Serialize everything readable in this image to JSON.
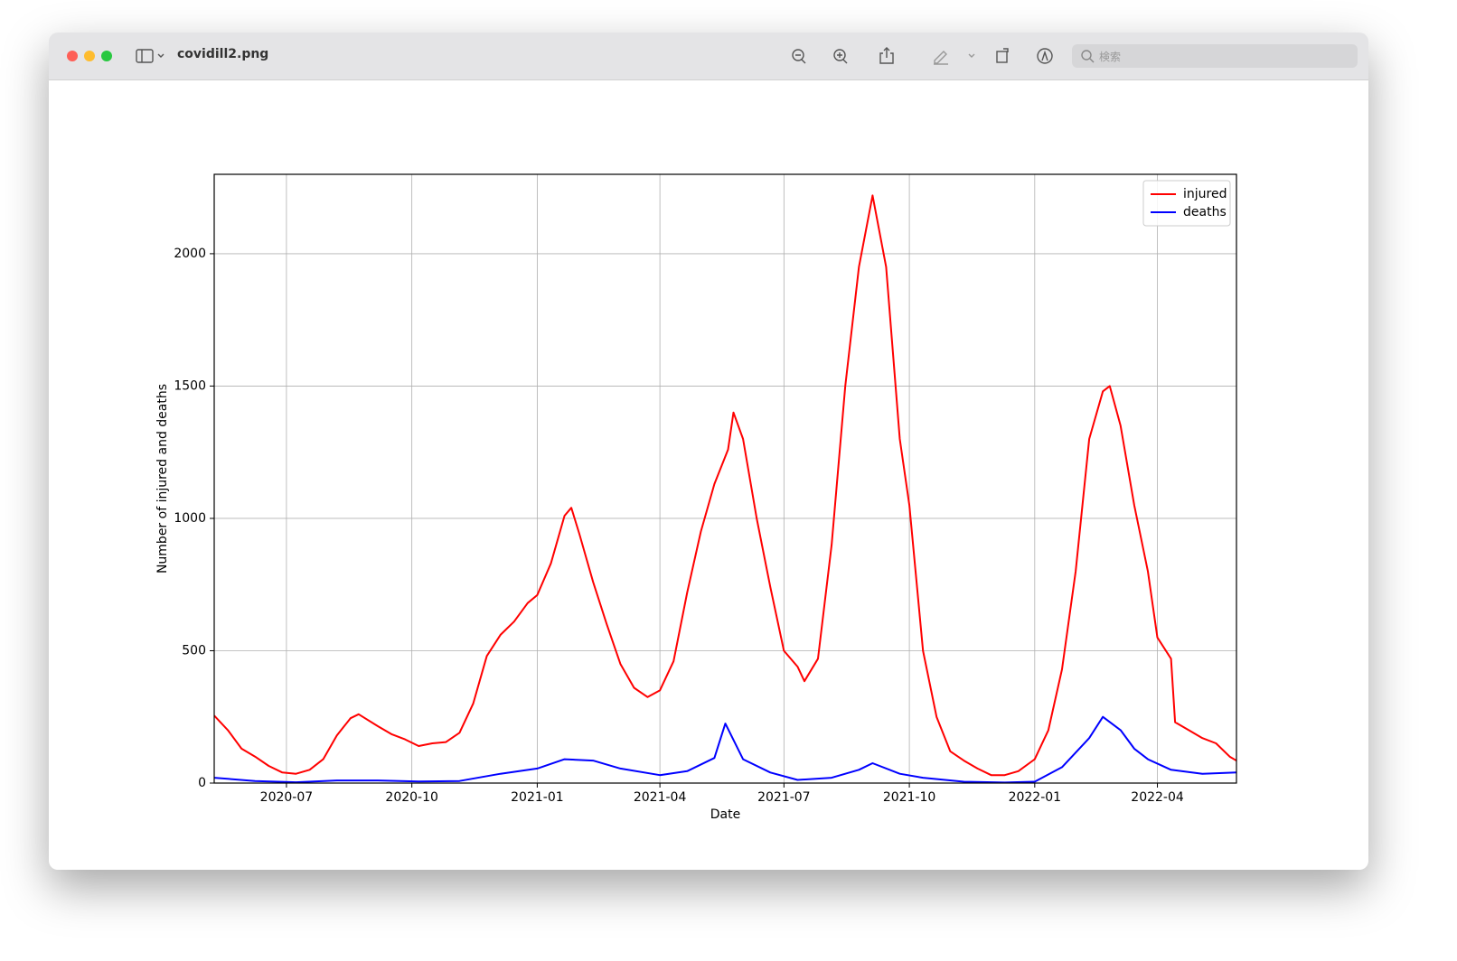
{
  "window": {
    "title": "covidill2.png",
    "search_placeholder": "検索"
  },
  "chart_data": {
    "type": "line",
    "xlabel": "Date",
    "ylabel": "Number of injured and deaths",
    "xlim": [
      "2020-05-09",
      "2022-05-29"
    ],
    "xticks": [
      "2020-07",
      "2020-10",
      "2021-01",
      "2021-04",
      "2021-07",
      "2021-10",
      "2022-01",
      "2022-04"
    ],
    "ylim": [
      0,
      2300
    ],
    "yticks": [
      0,
      500,
      1000,
      1500,
      2000
    ],
    "grid": true,
    "legend": "upper right",
    "series": [
      {
        "name": "injured",
        "color": "#ff0000",
        "x": [
          "2020-05-09",
          "2020-05-19",
          "2020-05-29",
          "2020-06-08",
          "2020-06-18",
          "2020-06-28",
          "2020-07-08",
          "2020-07-18",
          "2020-07-28",
          "2020-08-07",
          "2020-08-17",
          "2020-08-23",
          "2020-09-06",
          "2020-09-16",
          "2020-09-26",
          "2020-10-06",
          "2020-10-16",
          "2020-10-26",
          "2020-11-05",
          "2020-11-15",
          "2020-11-25",
          "2020-12-05",
          "2020-12-15",
          "2020-12-25",
          "2021-01-01",
          "2021-01-11",
          "2021-01-21",
          "2021-01-26",
          "2021-02-01",
          "2021-02-11",
          "2021-02-21",
          "2021-03-03",
          "2021-03-13",
          "2021-03-23",
          "2021-04-01",
          "2021-04-11",
          "2021-04-21",
          "2021-05-01",
          "2021-05-11",
          "2021-05-21",
          "2021-05-25",
          "2021-06-01",
          "2021-06-11",
          "2021-06-21",
          "2021-07-01",
          "2021-07-11",
          "2021-07-16",
          "2021-07-26",
          "2021-08-05",
          "2021-08-15",
          "2021-08-25",
          "2021-09-04",
          "2021-09-14",
          "2021-09-24",
          "2021-10-01",
          "2021-10-11",
          "2021-10-21",
          "2021-10-31",
          "2021-11-10",
          "2021-11-20",
          "2021-11-30",
          "2021-12-10",
          "2021-12-20",
          "2022-01-01",
          "2022-01-11",
          "2022-01-21",
          "2022-01-31",
          "2022-02-10",
          "2022-02-20",
          "2022-02-25",
          "2022-03-05",
          "2022-03-15",
          "2022-03-25",
          "2022-04-01",
          "2022-04-11",
          "2022-04-14",
          "2022-04-24",
          "2022-05-04",
          "2022-05-14",
          "2022-05-24",
          "2022-05-29"
        ],
        "values": [
          255,
          200,
          130,
          100,
          65,
          40,
          35,
          50,
          90,
          180,
          245,
          260,
          215,
          185,
          165,
          140,
          150,
          155,
          190,
          300,
          480,
          560,
          610,
          680,
          710,
          830,
          1010,
          1040,
          940,
          760,
          600,
          450,
          360,
          325,
          350,
          460,
          720,
          950,
          1130,
          1260,
          1400,
          1300,
          1000,
          740,
          500,
          440,
          385,
          470,
          900,
          1500,
          1950,
          2220,
          1950,
          1300,
          1050,
          500,
          250,
          120,
          85,
          55,
          30,
          30,
          45,
          90,
          200,
          430,
          800,
          1300,
          1480,
          1500,
          1350,
          1050,
          800,
          550,
          470,
          230,
          200,
          170,
          150,
          100,
          85
        ]
      },
      {
        "name": "deaths",
        "color": "#0000ff",
        "x": [
          "2020-05-09",
          "2020-06-08",
          "2020-07-08",
          "2020-08-07",
          "2020-09-06",
          "2020-10-06",
          "2020-11-05",
          "2020-12-05",
          "2021-01-01",
          "2021-01-21",
          "2021-02-11",
          "2021-03-03",
          "2021-04-01",
          "2021-04-21",
          "2021-05-11",
          "2021-05-19",
          "2021-06-01",
          "2021-06-21",
          "2021-07-11",
          "2021-08-05",
          "2021-08-25",
          "2021-09-04",
          "2021-09-24",
          "2021-10-11",
          "2021-11-10",
          "2021-12-10",
          "2022-01-01",
          "2022-01-21",
          "2022-02-10",
          "2022-02-20",
          "2022-03-05",
          "2022-03-15",
          "2022-03-25",
          "2022-04-11",
          "2022-05-04",
          "2022-05-29"
        ],
        "values": [
          20,
          8,
          3,
          10,
          10,
          6,
          8,
          35,
          55,
          90,
          85,
          55,
          30,
          45,
          95,
          225,
          90,
          40,
          12,
          20,
          50,
          75,
          35,
          20,
          5,
          2,
          5,
          60,
          170,
          250,
          200,
          130,
          90,
          50,
          35,
          40
        ]
      }
    ]
  }
}
